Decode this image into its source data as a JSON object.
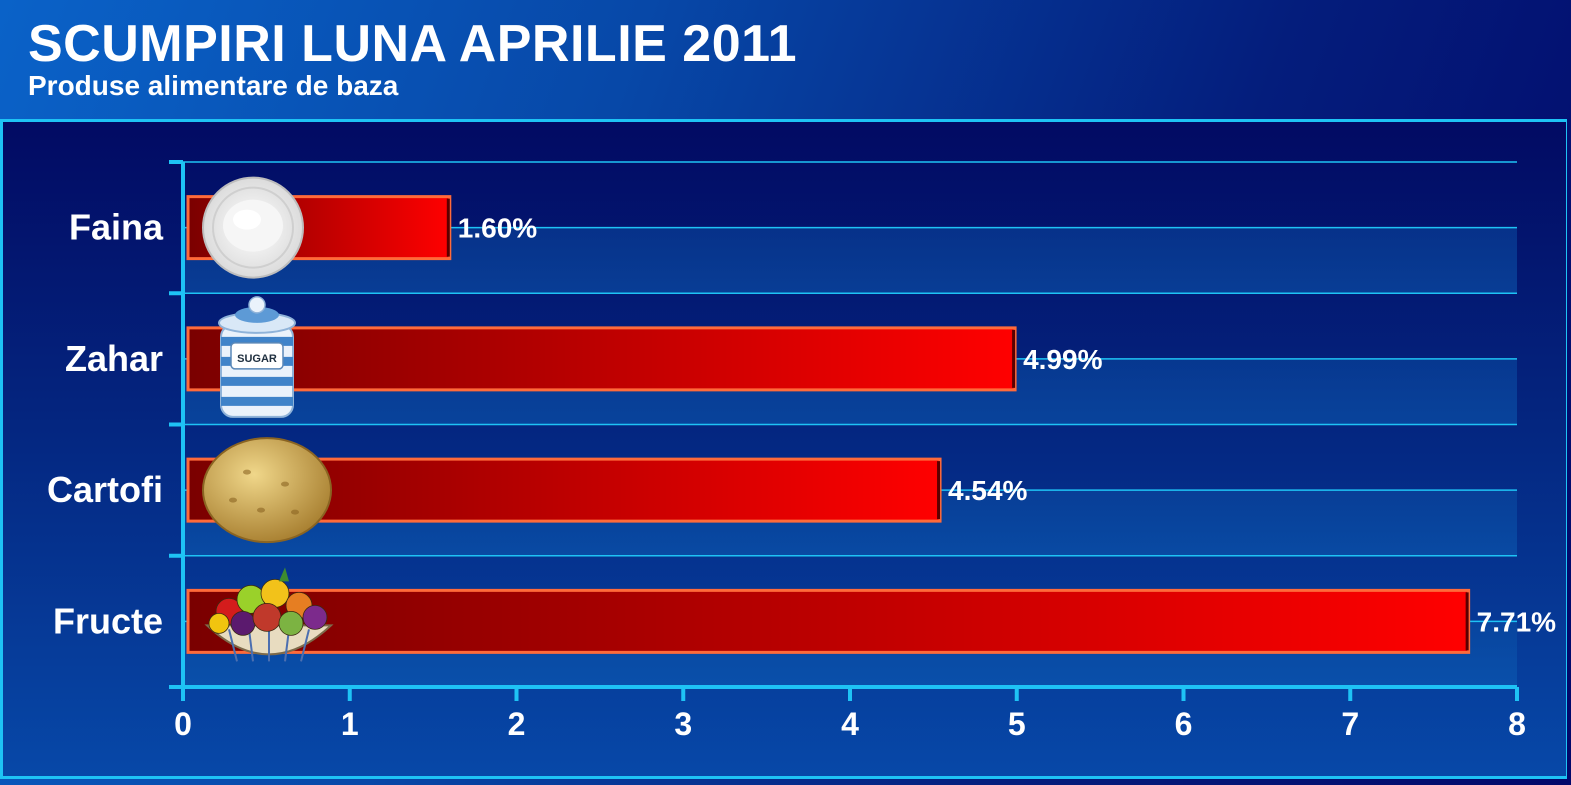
{
  "header": {
    "title": "SCUMPIRI LUNA APRILIE 2011",
    "subtitle": "Produse alimentare de baza"
  },
  "colors": {
    "grid": "#1ec3f5",
    "bar_dark": "#7a0000",
    "bar_light": "#ff0000",
    "bar_border": "#ff6a3a",
    "text": "#ffffff"
  },
  "chart_data": {
    "type": "bar",
    "orientation": "horizontal",
    "categories": [
      "Faina",
      "Zahar",
      "Cartofi",
      "Fructe"
    ],
    "values": [
      1.6,
      4.99,
      4.54,
      7.71
    ],
    "value_labels": [
      "1.60%",
      "4.99%",
      "4.54%",
      "7.71%"
    ],
    "icons": [
      "flour-plate-icon",
      "sugar-jar-icon",
      "potato-icon",
      "fruit-basket-icon"
    ],
    "xlim": [
      0,
      8
    ],
    "xticks": [
      "0",
      "1",
      "2",
      "3",
      "4",
      "5",
      "6",
      "7",
      "8"
    ],
    "grid": true,
    "legend": "none"
  }
}
